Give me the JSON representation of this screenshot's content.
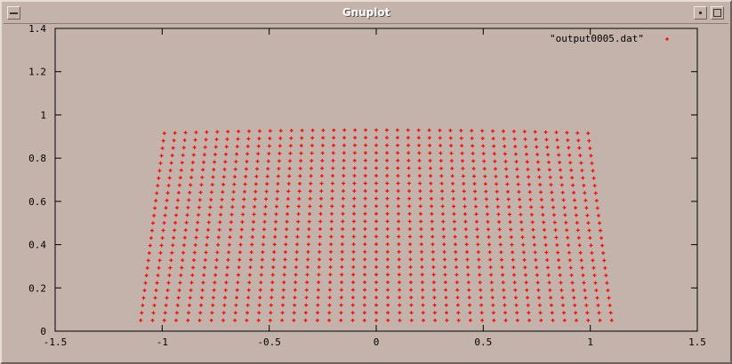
{
  "window": {
    "title": "Gnuplot"
  },
  "colors": {
    "background": "#c4b3aa",
    "points": "#ff0000",
    "axes": "#000000"
  },
  "chart_data": {
    "type": "scatter",
    "title": "",
    "xlabel": "",
    "ylabel": "",
    "xlim": [
      -1.5,
      1.5
    ],
    "ylim": [
      0,
      1.4
    ],
    "xticks": [
      "-1.5",
      "-1",
      "-0.5",
      "0",
      "0.5",
      "1",
      "1.5"
    ],
    "yticks": [
      "0",
      "0.2",
      "0.4",
      "0.6",
      "0.8",
      "1",
      "1.2",
      "1.4"
    ],
    "grid": false,
    "legend_position": "top-right",
    "series": [
      {
        "name": "\"output0005.dat\"",
        "grid_points": {
          "columns": 41,
          "rows": 26,
          "bottom_y": 0.05,
          "top_y": 0.915,
          "top_center_y": 0.93,
          "bottom_x_range": [
            -1.1,
            1.1
          ],
          "top_x_range": [
            -0.99,
            0.99
          ]
        }
      }
    ]
  }
}
